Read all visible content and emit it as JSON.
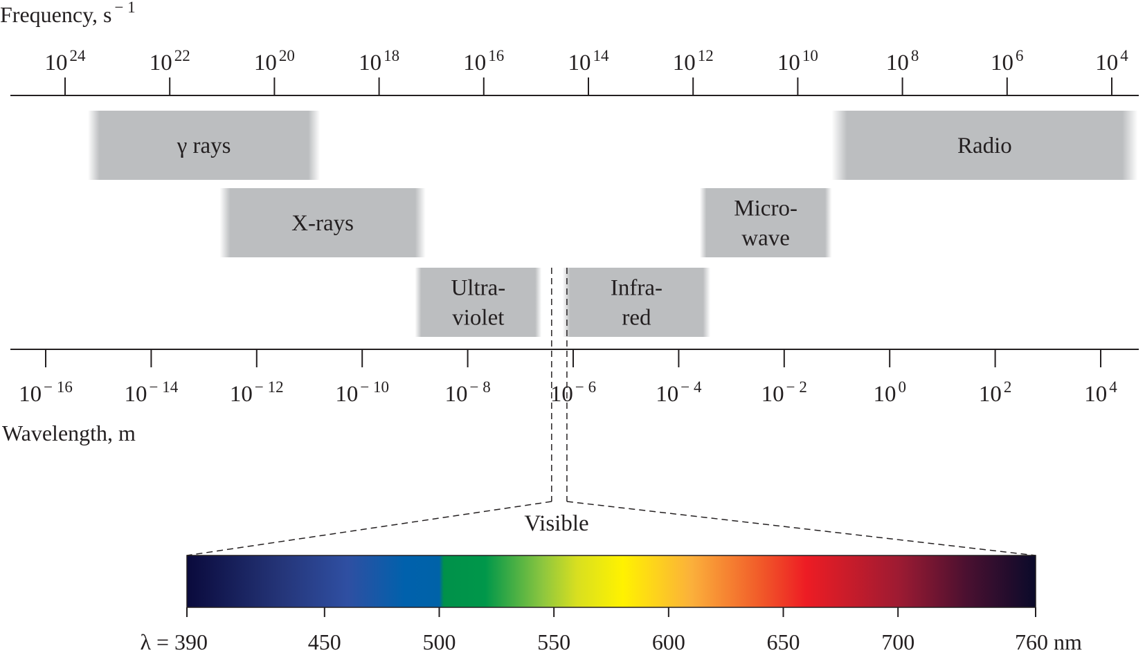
{
  "frequency_axis": {
    "title_main": "Frequency, s",
    "title_exp": "− 1",
    "ticks": [
      {
        "base": "10",
        "exp": "24"
      },
      {
        "base": "10",
        "exp": "22"
      },
      {
        "base": "10",
        "exp": "20"
      },
      {
        "base": "10",
        "exp": "18"
      },
      {
        "base": "10",
        "exp": "16"
      },
      {
        "base": "10",
        "exp": "14"
      },
      {
        "base": "10",
        "exp": "12"
      },
      {
        "base": "10",
        "exp": "10"
      },
      {
        "base": "10",
        "exp": "8"
      },
      {
        "base": "10",
        "exp": "6"
      },
      {
        "base": "10",
        "exp": "4"
      }
    ]
  },
  "wavelength_axis": {
    "title": "Wavelength, m",
    "ticks": [
      {
        "base": "10",
        "exp": "− 16"
      },
      {
        "base": "10",
        "exp": "− 14"
      },
      {
        "base": "10",
        "exp": "− 12"
      },
      {
        "base": "10",
        "exp": "− 10"
      },
      {
        "base": "10",
        "exp": "− 8"
      },
      {
        "base": "10",
        "exp": "− 6"
      },
      {
        "base": "10",
        "exp": "− 4"
      },
      {
        "base": "10",
        "exp": "− 2"
      },
      {
        "base": "10",
        "exp": "0"
      },
      {
        "base": "10",
        "exp": "2"
      },
      {
        "base": "10",
        "exp": "4"
      }
    ]
  },
  "bands": [
    {
      "name": "gamma-rays",
      "label_lines": [
        "γ rays"
      ],
      "wavelength_range_log10_m": [
        -15.2,
        -10.8
      ]
    },
    {
      "name": "x-rays",
      "label_lines": [
        "X-rays"
      ],
      "wavelength_range_log10_m": [
        -12.7,
        -8.8
      ]
    },
    {
      "name": "ultraviolet",
      "label_lines": [
        "Ultra-",
        "violet"
      ],
      "wavelength_range_log10_m": [
        -9.0,
        -6.6
      ]
    },
    {
      "name": "infrared",
      "label_lines": [
        "Infra-",
        "red"
      ],
      "wavelength_range_log10_m": [
        -6.2,
        -3.4
      ]
    },
    {
      "name": "microwave",
      "label_lines": [
        "Micro-",
        "wave"
      ],
      "wavelength_range_log10_m": [
        -3.6,
        -1.1
      ]
    },
    {
      "name": "radio",
      "label_lines": [
        "Radio"
      ],
      "wavelength_range_log10_m": [
        -1.1,
        4.7
      ]
    }
  ],
  "visible": {
    "label": "Visible",
    "wavelength_range_nm": [
      390,
      760
    ],
    "tick_labels": [
      "λ = 390",
      "450",
      "500",
      "550",
      "600",
      "650",
      "700",
      "760 nm"
    ],
    "tick_values_nm": [
      390,
      450,
      500,
      550,
      600,
      650,
      700,
      760
    ],
    "gradient_stops": [
      {
        "nm": 390,
        "color": "#0a0a3c"
      },
      {
        "nm": 430,
        "color": "#243477"
      },
      {
        "nm": 460,
        "color": "#2f4fa2"
      },
      {
        "nm": 485,
        "color": "#0061ac"
      },
      {
        "nm": 500,
        "color": "#0062a8"
      },
      {
        "nm": 502,
        "color": "#00914a"
      },
      {
        "nm": 520,
        "color": "#00974a"
      },
      {
        "nm": 545,
        "color": "#8cc63f"
      },
      {
        "nm": 560,
        "color": "#d8df20"
      },
      {
        "nm": 580,
        "color": "#fff200"
      },
      {
        "nm": 610,
        "color": "#fbb03b"
      },
      {
        "nm": 640,
        "color": "#f15a29"
      },
      {
        "nm": 660,
        "color": "#ed1c24"
      },
      {
        "nm": 700,
        "color": "#9e1b32"
      },
      {
        "nm": 730,
        "color": "#4a1030"
      },
      {
        "nm": 760,
        "color": "#0a0a2a"
      }
    ]
  },
  "colors": {
    "band_fill": "#bcbec0",
    "line": "#231f20",
    "text": "#231f20"
  }
}
